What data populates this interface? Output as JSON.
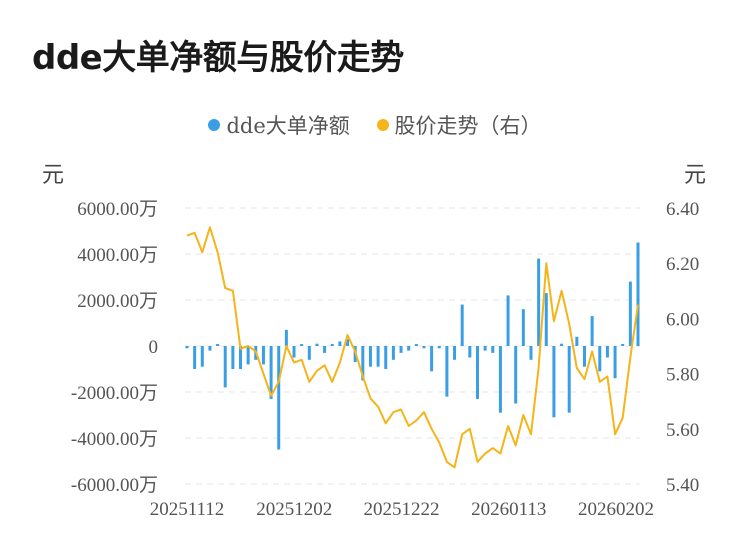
{
  "title": "dde大单净额与股价走势",
  "colors": {
    "bar": "#3a9ee4",
    "line": "#f4b41a",
    "grid": "#e6e6e6"
  },
  "chart_data": {
    "type": "bar+line",
    "title": "dde大单净额与股价走势",
    "legend": [
      "dde大单净额",
      "股价走势（右）"
    ],
    "left_unit": "元",
    "right_unit": "元",
    "left_ticks": [
      "6000.00万",
      "4000.00万",
      "2000.00万",
      "0",
      "-2000.00万",
      "-4000.00万",
      "-6000.00万"
    ],
    "right_ticks": [
      "6.40",
      "6.20",
      "6.00",
      "5.80",
      "5.60",
      "5.40"
    ],
    "x_ticks": [
      "20251112",
      "20251202",
      "20251222",
      "20260113",
      "20260202"
    ],
    "ylim_left": [
      -6000,
      6000
    ],
    "ylim_right": [
      5.4,
      6.4
    ],
    "series": [
      {
        "name": "dde大单净额",
        "axis": "left",
        "unit": "万",
        "values": [
          -100,
          -1000,
          -900,
          -200,
          0,
          -1800,
          -1000,
          -1000,
          -800,
          -600,
          -800,
          -2300,
          -4500,
          700,
          -500,
          0,
          -600,
          100,
          -300,
          0,
          200,
          300,
          -700,
          -1500,
          -900,
          -900,
          -1000,
          -600,
          -300,
          -200,
          0,
          -100,
          -1100,
          -100,
          -2200,
          -600,
          1800,
          -500,
          -2300,
          -200,
          -300,
          -2900,
          2200,
          -2500,
          1600,
          -600,
          3800,
          2300,
          -3100,
          100,
          -2900,
          400,
          -900,
          1300,
          -1100,
          -500,
          -1400,
          0,
          2800,
          4500
        ]
      },
      {
        "name": "股价走势（右）",
        "axis": "right",
        "values": [
          6.3,
          6.31,
          6.24,
          6.33,
          6.24,
          6.11,
          6.1,
          5.89,
          5.9,
          5.88,
          5.8,
          5.72,
          5.77,
          5.9,
          5.84,
          5.85,
          5.77,
          5.81,
          5.83,
          5.77,
          5.84,
          5.94,
          5.88,
          5.79,
          5.71,
          5.68,
          5.62,
          5.66,
          5.67,
          5.61,
          5.63,
          5.66,
          5.6,
          5.55,
          5.48,
          5.46,
          5.58,
          5.6,
          5.48,
          5.51,
          5.53,
          5.51,
          5.61,
          5.54,
          5.65,
          5.58,
          5.82,
          6.2,
          5.99,
          6.1,
          5.98,
          5.82,
          5.78,
          5.88,
          5.77,
          5.79,
          5.58,
          5.64,
          5.86,
          6.05
        ]
      }
    ]
  }
}
